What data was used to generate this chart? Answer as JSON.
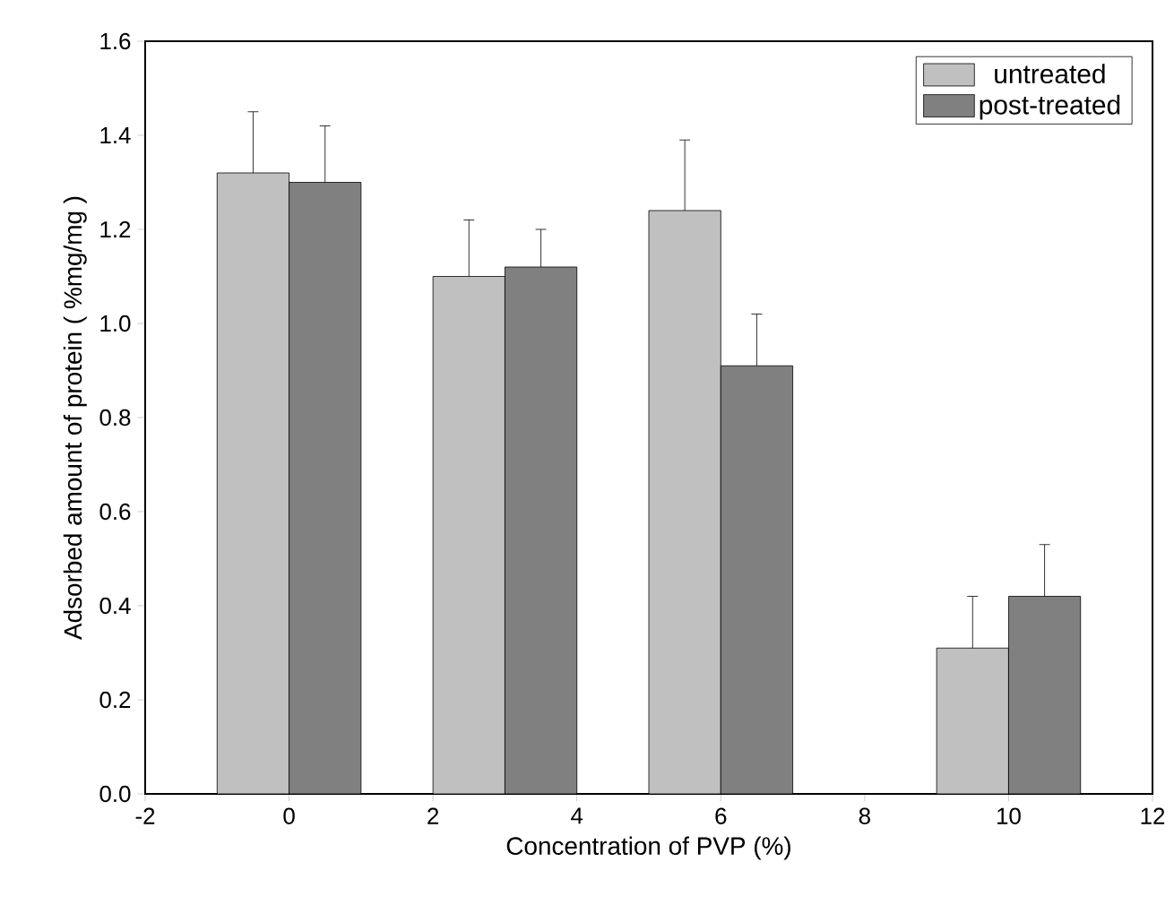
{
  "chart_data": {
    "type": "bar",
    "xlabel": "Concentration of PVP (%)",
    "ylabel": "Adsorbed amount of protein ( %mg/mg )",
    "xlim": [
      -2,
      12
    ],
    "xticks": [
      -2,
      0,
      2,
      4,
      6,
      8,
      10,
      12
    ],
    "ylim": [
      0,
      1.6
    ],
    "yticks": [
      {
        "value": 0,
        "label": "0.0"
      },
      {
        "value": 0.2,
        "label": "0.2"
      },
      {
        "value": 0.4,
        "label": "0.4"
      },
      {
        "value": 0.6,
        "label": "0.6"
      },
      {
        "value": 0.8,
        "label": "0.8"
      },
      {
        "value": 1.0,
        "label": "1.0"
      },
      {
        "value": 1.2,
        "label": "1.2"
      },
      {
        "value": 1.4,
        "label": "1.4"
      },
      {
        "value": 1.6,
        "label": "1.6"
      }
    ],
    "series": [
      {
        "name": "untreated",
        "color": "#c0c0c0",
        "x": [
          -0.5,
          2.5,
          5.5,
          9.5
        ],
        "values": [
          1.32,
          1.1,
          1.24,
          0.31
        ],
        "errors": [
          [
            1.32,
            1.45
          ],
          [
            1.1,
            1.22
          ],
          [
            1.24,
            1.39
          ],
          [
            0.31,
            0.42
          ]
        ]
      },
      {
        "name": "post-treated",
        "color": "#808080",
        "x": [
          0.5,
          3.5,
          6.5,
          10.5
        ],
        "values": [
          1.3,
          1.12,
          0.91,
          0.42
        ],
        "errors": [
          [
            1.3,
            1.42
          ],
          [
            1.12,
            1.2
          ],
          [
            0.91,
            1.02
          ],
          [
            0.42,
            0.53
          ]
        ]
      }
    ],
    "legend": "top right",
    "grid": false
  }
}
